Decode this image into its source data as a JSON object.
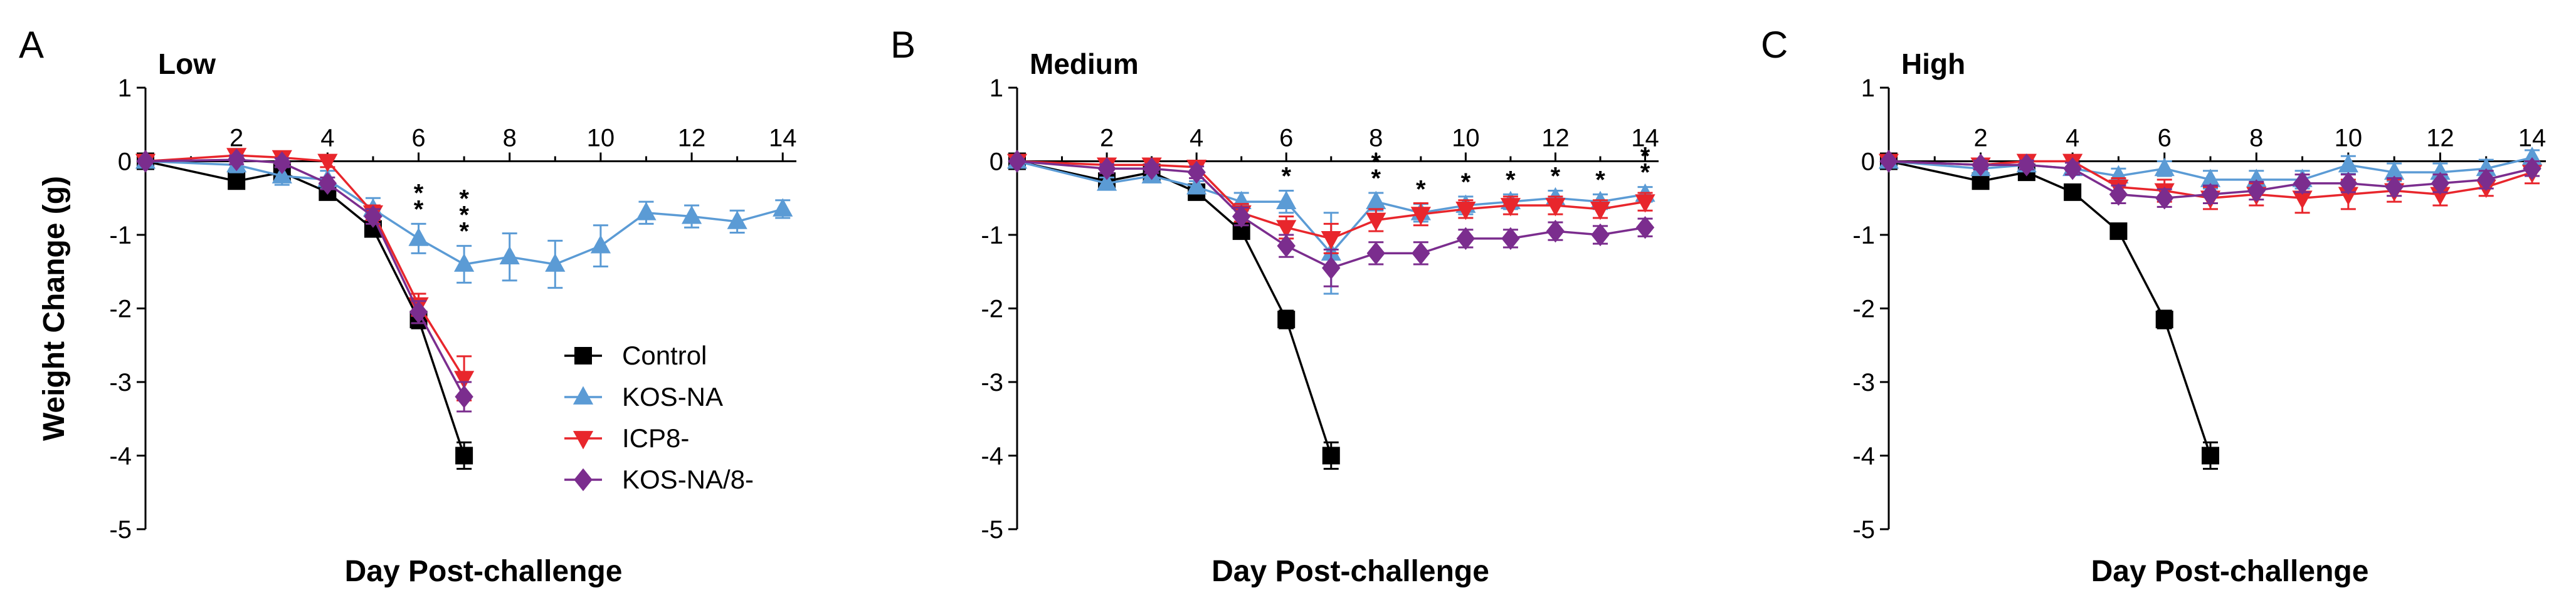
{
  "chart_data": [
    {
      "type": "line",
      "panel_letter": "A",
      "title": "Low",
      "xlabel": "Day Post-challenge",
      "ylabel": "Weight Change (g)",
      "xlim": [
        0,
        14.3
      ],
      "ylim": [
        -5,
        1
      ],
      "x_ticks": [
        2,
        4,
        6,
        8,
        10,
        12,
        14
      ],
      "y_ticks": [
        1,
        0,
        -1,
        -2,
        -3,
        -4,
        -5
      ],
      "legend_position": "right-center",
      "series": [
        {
          "name": "Control",
          "color": "#000000",
          "marker": "square",
          "x": [
            0,
            2,
            3,
            4,
            5,
            6,
            7
          ],
          "y": [
            0,
            -0.27,
            -0.15,
            -0.42,
            -0.92,
            -2.15,
            -4.0
          ],
          "err": [
            0.04,
            0.08,
            0.08,
            0.08,
            0.1,
            0.12,
            0.18
          ]
        },
        {
          "name": "KOS-NA",
          "color": "#5b9bd5",
          "marker": "triangle-up",
          "x": [
            0,
            2,
            3,
            4,
            5,
            6,
            7,
            8,
            9,
            10,
            11,
            12,
            13,
            14
          ],
          "y": [
            0,
            -0.05,
            -0.2,
            -0.25,
            -0.65,
            -1.05,
            -1.4,
            -1.3,
            -1.4,
            -1.15,
            -0.7,
            -0.75,
            -0.82,
            -0.65
          ],
          "err": [
            0.03,
            0.1,
            0.12,
            0.12,
            0.15,
            0.2,
            0.25,
            0.32,
            0.32,
            0.28,
            0.15,
            0.15,
            0.15,
            0.12
          ]
        },
        {
          "name": "ICP8-",
          "color": "#e8262c",
          "marker": "triangle-down",
          "x": [
            0,
            2,
            3,
            4,
            5,
            6,
            7
          ],
          "y": [
            0,
            0.08,
            0.05,
            0.0,
            -0.7,
            -1.95,
            -2.95
          ],
          "err": [
            0.03,
            0.06,
            0.06,
            0.08,
            0.1,
            0.15,
            0.3
          ]
        },
        {
          "name": "KOS-NA/8-",
          "color": "#7b2d8e",
          "marker": "diamond",
          "x": [
            0,
            2,
            3,
            4,
            5,
            6,
            7
          ],
          "y": [
            0,
            0.02,
            -0.02,
            -0.3,
            -0.75,
            -2.05,
            -3.2
          ],
          "err": [
            0.03,
            0.06,
            0.06,
            0.08,
            0.1,
            0.15,
            0.2
          ]
        }
      ],
      "annotations": [
        {
          "x": 6,
          "text": "*",
          "stack": 2
        },
        {
          "x": 7,
          "text": "*",
          "stack": 3
        }
      ]
    },
    {
      "type": "line",
      "panel_letter": "B",
      "title": "Medium",
      "xlabel": "Day Post-challenge",
      "ylabel": "",
      "xlim": [
        0,
        14.3
      ],
      "ylim": [
        -5,
        1
      ],
      "x_ticks": [
        2,
        4,
        6,
        8,
        10,
        12,
        14
      ],
      "y_ticks": [
        1,
        0,
        -1,
        -2,
        -3,
        -4,
        -5
      ],
      "series": [
        {
          "name": "Control",
          "color": "#000000",
          "marker": "square",
          "x": [
            0,
            2,
            3,
            4,
            5,
            6,
            7
          ],
          "y": [
            0,
            -0.27,
            -0.15,
            -0.42,
            -0.95,
            -2.15,
            -4.0
          ],
          "err": [
            0.04,
            0.08,
            0.08,
            0.08,
            0.1,
            0.12,
            0.18
          ]
        },
        {
          "name": "KOS-NA",
          "color": "#5b9bd5",
          "marker": "triangle-up",
          "x": [
            0,
            2,
            3,
            4,
            5,
            6,
            7,
            8,
            9,
            10,
            11,
            12,
            13,
            14
          ],
          "y": [
            0,
            -0.3,
            -0.2,
            -0.35,
            -0.55,
            -0.55,
            -1.25,
            -0.55,
            -0.7,
            -0.6,
            -0.55,
            -0.5,
            -0.55,
            -0.45
          ],
          "err": [
            0.03,
            0.08,
            0.08,
            0.08,
            0.12,
            0.15,
            0.55,
            0.12,
            0.12,
            0.12,
            0.1,
            0.1,
            0.1,
            0.1
          ]
        },
        {
          "name": "ICP8-",
          "color": "#e8262c",
          "marker": "triangle-down",
          "x": [
            0,
            2,
            3,
            4,
            5,
            6,
            7,
            8,
            9,
            10,
            11,
            12,
            13,
            14
          ],
          "y": [
            0,
            -0.05,
            -0.05,
            -0.08,
            -0.7,
            -0.9,
            -1.05,
            -0.8,
            -0.72,
            -0.65,
            -0.6,
            -0.6,
            -0.65,
            -0.55
          ],
          "err": [
            0.03,
            0.06,
            0.06,
            0.08,
            0.12,
            0.15,
            0.2,
            0.15,
            0.15,
            0.12,
            0.12,
            0.12,
            0.12,
            0.12
          ]
        },
        {
          "name": "KOS-NA/8-",
          "color": "#7b2d8e",
          "marker": "diamond",
          "x": [
            0,
            2,
            3,
            4,
            5,
            6,
            7,
            8,
            9,
            10,
            11,
            12,
            13,
            14
          ],
          "y": [
            0,
            -0.1,
            -0.1,
            -0.15,
            -0.75,
            -1.15,
            -1.45,
            -1.25,
            -1.25,
            -1.05,
            -1.05,
            -0.95,
            -1.0,
            -0.9
          ],
          "err": [
            0.03,
            0.06,
            0.06,
            0.08,
            0.12,
            0.15,
            0.25,
            0.15,
            0.15,
            0.12,
            0.12,
            0.12,
            0.12,
            0.12
          ]
        }
      ],
      "annotations": [
        {
          "x": 6,
          "text": "*",
          "stack": 1
        },
        {
          "x": 8,
          "text": "*",
          "stack": 2
        },
        {
          "x": 9,
          "text": "*",
          "stack": 1
        },
        {
          "x": 10,
          "text": "*",
          "stack": 1
        },
        {
          "x": 11,
          "text": "*",
          "stack": 1
        },
        {
          "x": 12,
          "text": "*",
          "stack": 1
        },
        {
          "x": 13,
          "text": "*",
          "stack": 1
        },
        {
          "x": 14,
          "text": "*",
          "stack": 2
        }
      ]
    },
    {
      "type": "line",
      "panel_letter": "C",
      "title": "High",
      "xlabel": "Day  Post-challenge",
      "ylabel": "",
      "xlim": [
        0,
        14.3
      ],
      "ylim": [
        -5,
        1
      ],
      "x_ticks": [
        2,
        4,
        6,
        8,
        10,
        12,
        14
      ],
      "y_ticks": [
        1,
        0,
        -1,
        -2,
        -3,
        -4,
        -5
      ],
      "series": [
        {
          "name": "Control",
          "color": "#000000",
          "marker": "square",
          "x": [
            0,
            2,
            3,
            4,
            5,
            6,
            7
          ],
          "y": [
            0,
            -0.27,
            -0.15,
            -0.42,
            -0.95,
            -2.15,
            -4.0
          ],
          "err": [
            0.04,
            0.08,
            0.08,
            0.08,
            0.1,
            0.12,
            0.18
          ]
        },
        {
          "name": "KOS-NA",
          "color": "#5b9bd5",
          "marker": "triangle-up",
          "x": [
            0,
            2,
            3,
            4,
            5,
            6,
            7,
            8,
            9,
            10,
            11,
            12,
            13,
            14
          ],
          "y": [
            0,
            -0.1,
            -0.05,
            -0.1,
            -0.2,
            -0.1,
            -0.25,
            -0.25,
            -0.25,
            -0.05,
            -0.15,
            -0.15,
            -0.1,
            0.05
          ],
          "err": [
            0.03,
            0.06,
            0.06,
            0.08,
            0.1,
            0.1,
            0.12,
            0.12,
            0.12,
            0.12,
            0.12,
            0.12,
            0.12,
            0.1
          ]
        },
        {
          "name": "ICP8-",
          "color": "#e8262c",
          "marker": "triangle-down",
          "x": [
            0,
            2,
            3,
            4,
            5,
            6,
            7,
            8,
            9,
            10,
            11,
            12,
            13,
            14
          ],
          "y": [
            0,
            -0.05,
            0.0,
            0.0,
            -0.35,
            -0.4,
            -0.5,
            -0.45,
            -0.5,
            -0.45,
            -0.4,
            -0.45,
            -0.35,
            -0.15
          ],
          "err": [
            0.03,
            0.06,
            0.06,
            0.08,
            0.12,
            0.15,
            0.15,
            0.15,
            0.2,
            0.2,
            0.15,
            0.15,
            0.12,
            0.15
          ]
        },
        {
          "name": "KOS-NA/8-",
          "color": "#7b2d8e",
          "marker": "diamond",
          "x": [
            0,
            2,
            3,
            4,
            5,
            6,
            7,
            8,
            9,
            10,
            11,
            12,
            13,
            14
          ],
          "y": [
            0,
            -0.05,
            -0.05,
            -0.1,
            -0.45,
            -0.5,
            -0.45,
            -0.4,
            -0.3,
            -0.3,
            -0.35,
            -0.3,
            -0.25,
            -0.1
          ],
          "err": [
            0.03,
            0.06,
            0.06,
            0.08,
            0.12,
            0.12,
            0.12,
            0.12,
            0.12,
            0.12,
            0.12,
            0.12,
            0.12,
            0.1
          ]
        }
      ],
      "annotations": []
    }
  ]
}
